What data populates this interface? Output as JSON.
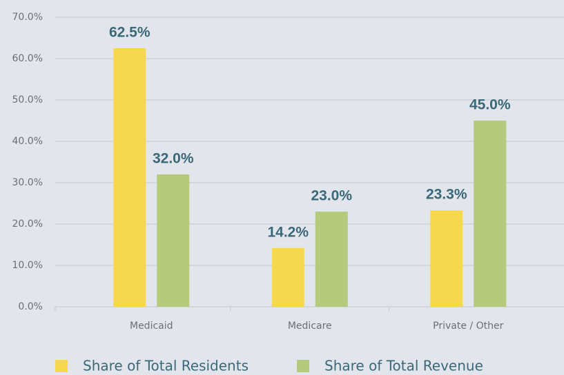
{
  "chart_data": {
    "type": "bar",
    "categories": [
      "Medicaid",
      "Medicare",
      "Private / Other"
    ],
    "series": [
      {
        "name": "Share of Total Residents",
        "color": "#f5d84e",
        "values": [
          62.5,
          14.2,
          23.3
        ],
        "value_labels": [
          "62.5%",
          "14.2%",
          "23.3%"
        ]
      },
      {
        "name": "Share of Total Revenue",
        "color": "#b5ca7a",
        "values": [
          32.0,
          23.0,
          45.0
        ],
        "value_labels": [
          "32.0%",
          "23.0%",
          "45.0%"
        ]
      }
    ],
    "ylim": [
      0,
      70
    ],
    "yticks": [
      {
        "value": 0,
        "label": "0.0%"
      },
      {
        "value": 10,
        "label": "10.0%"
      },
      {
        "value": 20,
        "label": "20.0%"
      },
      {
        "value": 30,
        "label": "30.0%"
      },
      {
        "value": 40,
        "label": "40.0%"
      },
      {
        "value": 50,
        "label": "50.0%"
      },
      {
        "value": 60,
        "label": "60.0%"
      },
      {
        "value": 70,
        "label": "70.0%"
      }
    ],
    "grid": true,
    "legend": "bottom"
  }
}
